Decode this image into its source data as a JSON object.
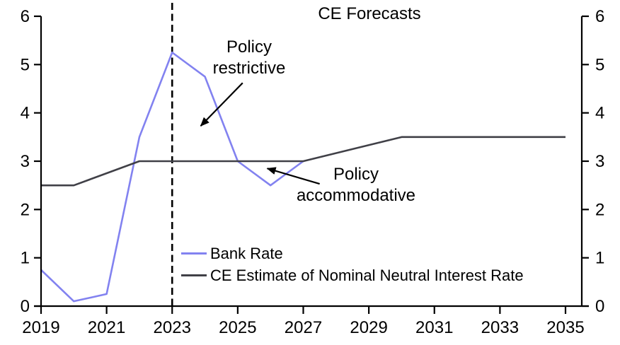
{
  "title": "CE Forecasts",
  "colors": {
    "bank_rate": "#8282f0",
    "neutral_rate": "#404047",
    "axis": "#000000",
    "divider": "#000000",
    "background": "#ffffff"
  },
  "chart_data": {
    "type": "line",
    "title": "CE Forecasts",
    "xlabel": "",
    "ylabel": "",
    "x_axis": {
      "min": 2019,
      "max": 2035.5,
      "tick_years": [
        2019,
        2021,
        2023,
        2025,
        2027,
        2029,
        2031,
        2033,
        2035
      ]
    },
    "y_axis": {
      "min": 0,
      "max": 6,
      "ticks": [
        0,
        1,
        2,
        3,
        4,
        5,
        6
      ],
      "shown_left": true,
      "shown_right": true
    },
    "grid": "off",
    "forecast_divider_year": 2023,
    "series": [
      {
        "id": "bank-rate",
        "name": "Bank Rate",
        "color": "#8282f0",
        "points": [
          [
            2019,
            0.75
          ],
          [
            2020,
            0.1
          ],
          [
            2021,
            0.25
          ],
          [
            2022,
            3.5
          ],
          [
            2023,
            5.25
          ],
          [
            2024,
            4.75
          ],
          [
            2025,
            3.0
          ],
          [
            2026,
            2.5
          ],
          [
            2027,
            3.0
          ]
        ]
      },
      {
        "id": "neutral-rate",
        "name": "CE Estimate of Nominal Neutral Interest Rate",
        "color": "#404047",
        "points": [
          [
            2019,
            2.5
          ],
          [
            2020,
            2.5
          ],
          [
            2022,
            3.0
          ],
          [
            2027,
            3.0
          ],
          [
            2030,
            3.5
          ],
          [
            2035,
            3.5
          ]
        ]
      }
    ],
    "annotations": [
      {
        "lines": [
          "Policy",
          "restrictive"
        ],
        "arrow": {
          "from": [
            2025.15,
            4.62
          ],
          "to": [
            2023.87,
            3.73
          ]
        }
      },
      {
        "lines": [
          "Policy",
          "accommodative"
        ],
        "arrow": {
          "from": [
            2027.5,
            2.53
          ],
          "to": [
            2025.9,
            2.85
          ]
        }
      }
    ],
    "legend": {
      "position": "inside-bottom-center",
      "entries": [
        {
          "label": "Bank Rate",
          "color": "#8282f0"
        },
        {
          "label": "CE Estimate of Nominal Neutral Interest Rate",
          "color": "#404047"
        }
      ]
    }
  }
}
